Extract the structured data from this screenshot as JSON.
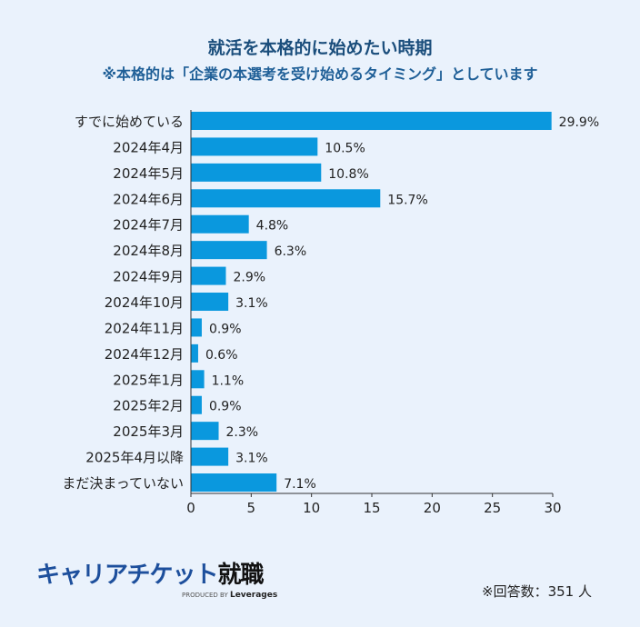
{
  "chart_data": {
    "type": "bar",
    "orientation": "horizontal",
    "title": "就活を本格的に始めたい時期",
    "subtitle": "※本格的は「企業の本選考を受け始めるタイミング」としています",
    "categories": [
      "すでに始めている",
      "2024年4月",
      "2024年5月",
      "2024年6月",
      "2024年7月",
      "2024年8月",
      "2024年9月",
      "2024年10月",
      "2024年11月",
      "2024年12月",
      "2025年1月",
      "2025年2月",
      "2025年3月",
      "2025年4月以降",
      "まだ決まっていない"
    ],
    "values": [
      29.9,
      10.5,
      10.8,
      15.7,
      4.8,
      6.3,
      2.9,
      3.1,
      0.9,
      0.6,
      1.1,
      0.9,
      2.3,
      3.1,
      7.1
    ],
    "value_suffix": "%",
    "xlim": [
      0,
      30
    ],
    "xticks": [
      0,
      5,
      10,
      15,
      20,
      25,
      30
    ],
    "grid": false,
    "bar_color": "#0a98de"
  },
  "logo": {
    "main_a": "キャリアチケット",
    "main_b": "就職",
    "sub": "PRODUCED BY",
    "sub_brand": "Leverages"
  },
  "note": "※回答数：351 人"
}
